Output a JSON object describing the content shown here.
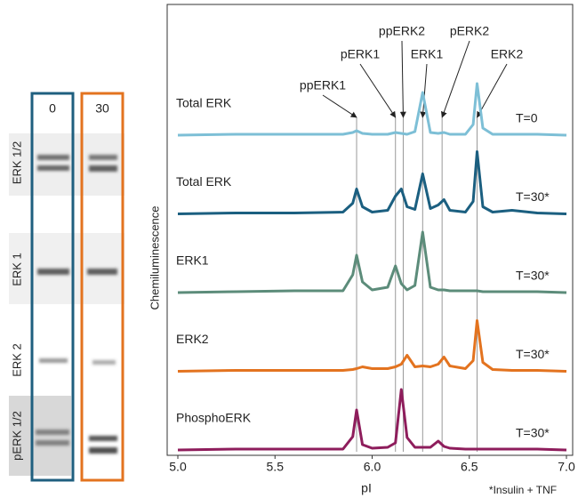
{
  "blot": {
    "lanes": [
      "0",
      "30"
    ],
    "rows": [
      "ERK 1/2",
      "ERK 1",
      "ERK 2",
      "pERK 1/2"
    ]
  },
  "chart_data": {
    "type": "line",
    "ylabel": "Chemiluminescence",
    "xlabel": "pI",
    "footnote": "*Insulin + TNF",
    "xlim": [
      5,
      7
    ],
    "xticks": [
      {
        "value": 5,
        "label": "5.0"
      },
      5.5,
      {
        "value": 6,
        "label": "6.0"
      },
      6.5,
      {
        "value": 7,
        "label": "7.0"
      }
    ],
    "x": [
      5.0,
      5.3,
      5.6,
      5.85,
      5.9,
      5.92,
      5.95,
      6.0,
      6.08,
      6.12,
      6.15,
      6.18,
      6.22,
      6.26,
      6.3,
      6.34,
      6.37,
      6.4,
      6.48,
      6.52,
      6.54,
      6.57,
      6.62,
      6.72,
      6.85,
      7.0
    ],
    "series": [
      {
        "name": "Total ERK",
        "condition": "T=0",
        "color": "#7dbfd6",
        "values": [
          0,
          1,
          1,
          1,
          3,
          5,
          2,
          1,
          1,
          3,
          2,
          1,
          4,
          48,
          3,
          2,
          3,
          1,
          1,
          12,
          58,
          8,
          1,
          1,
          1,
          0
        ]
      },
      {
        "name": "Total ERK",
        "condition": "T=30*",
        "color": "#1b5f80",
        "values": [
          0,
          1,
          1,
          2,
          12,
          28,
          8,
          2,
          4,
          20,
          28,
          8,
          5,
          45,
          6,
          10,
          16,
          4,
          2,
          14,
          70,
          8,
          2,
          4,
          1,
          0
        ]
      },
      {
        "name": "ERK1",
        "condition": "T=30*",
        "color": "#5c8c7a",
        "values": [
          0,
          1,
          2,
          2,
          20,
          42,
          12,
          3,
          6,
          30,
          10,
          3,
          8,
          68,
          6,
          3,
          3,
          2,
          2,
          2,
          2,
          1,
          1,
          1,
          1,
          0
        ]
      },
      {
        "name": "ERK2",
        "condition": "T=30*",
        "color": "#e3731f",
        "values": [
          0,
          1,
          1,
          1,
          2,
          3,
          5,
          3,
          3,
          5,
          8,
          18,
          5,
          6,
          5,
          8,
          16,
          6,
          3,
          12,
          57,
          10,
          2,
          1,
          1,
          0
        ]
      },
      {
        "name": "PhosphoERK",
        "condition": "T=30*",
        "color": "#8e1d5c",
        "values": [
          0,
          1,
          1,
          1,
          15,
          45,
          6,
          2,
          3,
          8,
          68,
          14,
          3,
          3,
          3,
          10,
          4,
          2,
          1,
          1,
          1,
          1,
          1,
          1,
          1,
          0
        ]
      }
    ],
    "annotations": [
      {
        "text": "ppERK1",
        "x": 5.92
      },
      {
        "text": "pERK1",
        "x": 6.12
      },
      {
        "text": "ppERK2",
        "x": 6.16
      },
      {
        "text": "ERK1",
        "x": 6.26
      },
      {
        "text": "pERK2",
        "x": 6.36
      },
      {
        "text": "ERK2",
        "x": 6.54
      }
    ]
  }
}
